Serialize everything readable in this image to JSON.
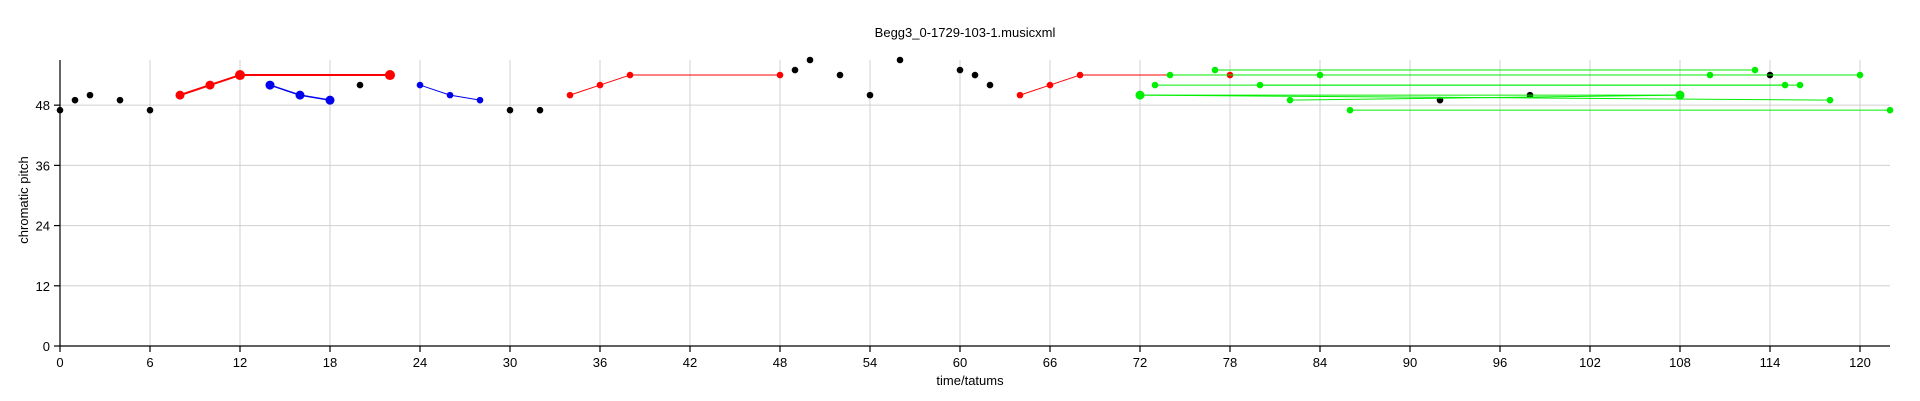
{
  "chart_data": {
    "type": "scatter",
    "title": "Begg3_0-1729-103-1.musicxml",
    "xlabel": "time/tatums",
    "ylabel": "chromatic pitch",
    "xlim": [
      0,
      122
    ],
    "ylim": [
      0,
      57
    ],
    "xticks": [
      0,
      6,
      12,
      18,
      24,
      30,
      36,
      42,
      48,
      54,
      60,
      66,
      72,
      78,
      84,
      90,
      96,
      102,
      108,
      114,
      120
    ],
    "yticks": [
      0,
      12,
      24,
      36,
      48
    ],
    "grid": true,
    "legend": "none",
    "colors": {
      "black": "#000000",
      "red": "#ff0000",
      "blue": "#0000ee",
      "green": "#00ee00"
    },
    "series": [
      {
        "color": "black",
        "points": [
          [
            0,
            47
          ],
          [
            1,
            49
          ],
          [
            2,
            50
          ],
          [
            4,
            49
          ],
          [
            6,
            47
          ],
          [
            20,
            52
          ],
          [
            30,
            47
          ],
          [
            32,
            47
          ],
          [
            49,
            55
          ],
          [
            50,
            57
          ],
          [
            52,
            54
          ],
          [
            54,
            50
          ],
          [
            56,
            57
          ],
          [
            60,
            55
          ],
          [
            61,
            54
          ],
          [
            62,
            52
          ],
          [
            92,
            49
          ],
          [
            98,
            50
          ],
          [
            114,
            54
          ]
        ]
      },
      {
        "color": "red",
        "points": [
          [
            8,
            50
          ],
          [
            10,
            52
          ],
          [
            12,
            54
          ],
          [
            22,
            54
          ]
        ],
        "marker_sizes": [
          4.5,
          4.5,
          5,
          5
        ],
        "line_width": 2
      },
      {
        "color": "blue",
        "points": [
          [
            14,
            52
          ],
          [
            16,
            50
          ],
          [
            18,
            49
          ]
        ],
        "marker_sizes": [
          4.5,
          4.5,
          4.5
        ],
        "line_width": 1.5
      },
      {
        "color": "blue",
        "points": [
          [
            24,
            52
          ],
          [
            26,
            50
          ],
          [
            28,
            49
          ]
        ],
        "line_width": 1
      },
      {
        "color": "red",
        "points": [
          [
            34,
            50
          ],
          [
            36,
            52
          ],
          [
            38,
            54
          ],
          [
            48,
            54
          ]
        ],
        "line_width": 1
      },
      {
        "color": "red",
        "points": [
          [
            64,
            50
          ],
          [
            66,
            52
          ],
          [
            68,
            54
          ],
          [
            78,
            54
          ]
        ],
        "line_width": 1
      },
      {
        "color": "green",
        "points": [
          [
            72,
            50
          ],
          [
            108,
            50
          ]
        ],
        "marker_sizes": [
          4.5,
          4.5
        ],
        "line_width": 1
      },
      {
        "color": "green",
        "points": [
          [
            72,
            50
          ],
          [
            118,
            49
          ]
        ],
        "line_width": 1
      },
      {
        "color": "green",
        "points": [
          [
            73,
            52
          ],
          [
            115,
            52
          ]
        ],
        "line_width": 1
      },
      {
        "color": "green",
        "points": [
          [
            74,
            54
          ],
          [
            110,
            54
          ]
        ],
        "line_width": 1
      },
      {
        "color": "green",
        "points": [
          [
            77,
            55
          ],
          [
            113,
            55
          ]
        ],
        "line_width": 1
      },
      {
        "color": "green",
        "points": [
          [
            80,
            52
          ],
          [
            116,
            52
          ]
        ],
        "line_width": 1
      },
      {
        "color": "green",
        "points": [
          [
            82,
            49
          ],
          [
            108,
            50
          ]
        ],
        "line_width": 1
      },
      {
        "color": "green",
        "points": [
          [
            84,
            54
          ],
          [
            120,
            54
          ]
        ],
        "line_width": 1
      },
      {
        "color": "green",
        "points": [
          [
            86,
            47
          ],
          [
            122,
            47
          ]
        ],
        "line_width": 1
      }
    ]
  }
}
